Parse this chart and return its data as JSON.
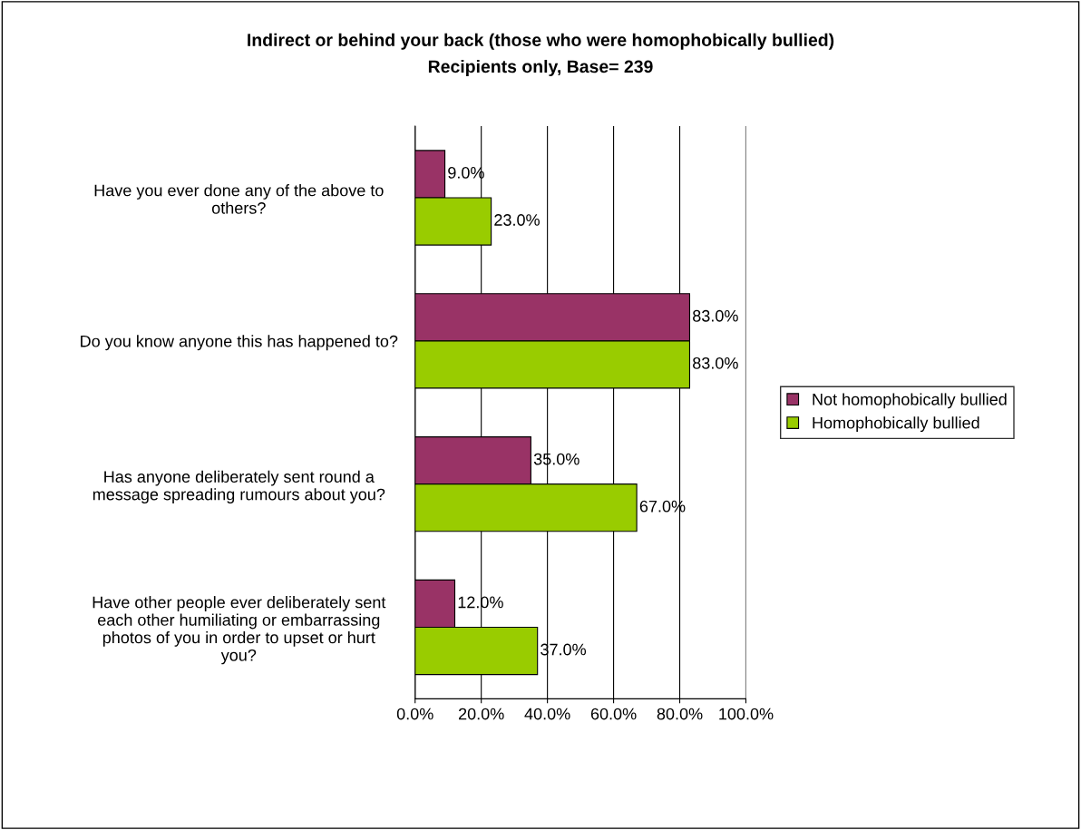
{
  "chart_data": {
    "type": "bar",
    "orientation": "horizontal",
    "title": "Indirect or behind your back (those who were homophobically bullied)",
    "subtitle": "Recipients only, Base= 239",
    "categories": [
      "Have you ever done any of the above to others?",
      "Do you know anyone this has happened to?",
      "Has anyone deliberately sent round a message spreading rumours about you?",
      "Have other people ever deliberately sent each other humiliating or embarrassing photos of you in order to upset or hurt you?"
    ],
    "series": [
      {
        "name": "Not homophobically bullied",
        "color": "#993366",
        "values": [
          9,
          83,
          35,
          12
        ],
        "value_labels": [
          "9.0%",
          "83.0%",
          "35.0%",
          "12.0%"
        ]
      },
      {
        "name": "Homophobically bullied",
        "color": "#99cc00",
        "values": [
          23,
          83,
          67,
          37
        ],
        "value_labels": [
          "23.0%",
          "83.0%",
          "67.0%",
          "37.0%"
        ]
      }
    ],
    "xlim": [
      0,
      100
    ],
    "xticks": [
      {
        "value": 0,
        "label": "0.0%"
      },
      {
        "value": 20,
        "label": "20.0%"
      },
      {
        "value": 40,
        "label": "40.0%"
      },
      {
        "value": 60,
        "label": "60.0%"
      },
      {
        "value": 80,
        "label": "80.0%"
      },
      {
        "value": 100,
        "label": "100.0%"
      }
    ],
    "grid": "x",
    "legend": "right"
  }
}
